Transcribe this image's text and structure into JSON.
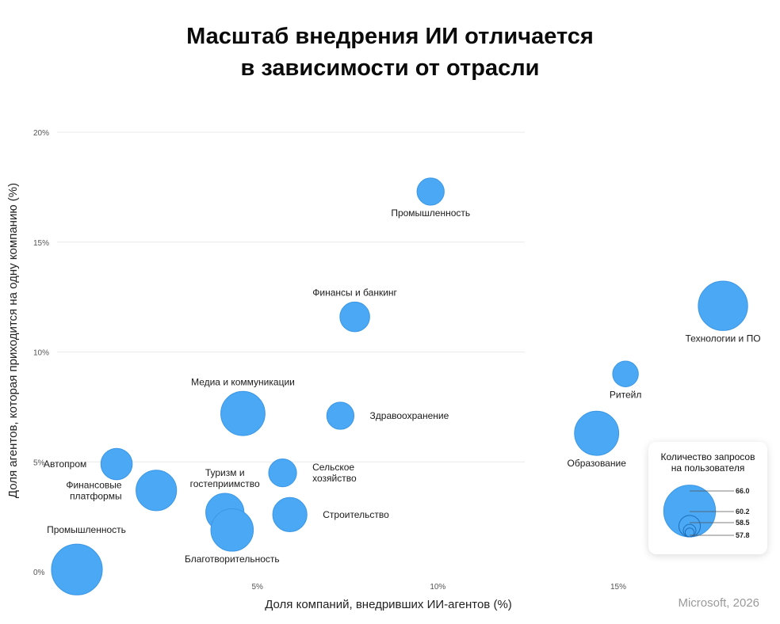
{
  "chart_data": {
    "type": "bubble",
    "title_lines": [
      "Масштаб внедрения ИИ отличается",
      "в зависимости от отрасли"
    ],
    "xlabel": "Доля компаний, внедривших ИИ-агентов (%)",
    "ylabel": "Доля агентов, которая приходится на одну компанию (%)",
    "xlim": [
      -1.2,
      19.5
    ],
    "ylim": [
      0,
      20
    ],
    "x_ticks": [
      {
        "v": 5,
        "label": "5%"
      },
      {
        "v": 10,
        "label": "10%"
      },
      {
        "v": 15,
        "label": "15%"
      }
    ],
    "y_ticks": [
      {
        "v": 0,
        "label": "0%"
      },
      {
        "v": 5,
        "label": "5%"
      },
      {
        "v": 10,
        "label": "10%"
      },
      {
        "v": 15,
        "label": "15%"
      },
      {
        "v": 20,
        "label": "20%"
      }
    ],
    "grid": true,
    "points": [
      {
        "label": "Промышленность",
        "x": 9.8,
        "y": 17.3,
        "size": 57.8,
        "label_pos": "below"
      },
      {
        "label": "Финансы и банкинг",
        "x": 7.7,
        "y": 11.6,
        "size": 58.2,
        "label_pos": "above"
      },
      {
        "label": "Технологии и ПО",
        "x": 17.9,
        "y": 12.1,
        "size": 64.0,
        "label_pos": "below"
      },
      {
        "label": "Ритейл",
        "x": 15.2,
        "y": 9.0,
        "size": 57.6,
        "label_pos": "below"
      },
      {
        "label": "Медиа и коммуникации",
        "x": 4.6,
        "y": 7.2,
        "size": 62.0,
        "label_pos": "above"
      },
      {
        "label": "Здравоохранение",
        "x": 7.3,
        "y": 7.1,
        "size": 57.8,
        "label_pos": "right"
      },
      {
        "label": "Образование",
        "x": 14.4,
        "y": 6.3,
        "size": 62.0,
        "label_pos": "below"
      },
      {
        "label": "Автопром",
        "x": 1.1,
        "y": 4.9,
        "size": 58.5,
        "label_pos": "left"
      },
      {
        "label": "Сельское хозяйство",
        "x": 5.7,
        "y": 4.5,
        "size": 57.9,
        "label_pos": "right",
        "label_lines": [
          "Сельское",
          "хозяйство"
        ]
      },
      {
        "label": "Финансовые платформы",
        "x": 2.2,
        "y": 3.7,
        "size": 60.8,
        "label_pos": "left",
        "label_lines": [
          "Финансовые",
          "платформы"
        ]
      },
      {
        "label": "Туризм и гостеприимство",
        "x": 4.1,
        "y": 2.7,
        "size": 60.1,
        "label_pos": "above",
        "label_lines": [
          "Туризм и",
          "гостеприимство"
        ]
      },
      {
        "label": "Строительство",
        "x": 5.9,
        "y": 2.6,
        "size": 59.1,
        "label_pos": "right"
      },
      {
        "label": "Благотворительность",
        "x": 4.3,
        "y": 1.9,
        "size": 61.4,
        "label_pos": "below"
      },
      {
        "label": "Промышленность",
        "x": 0.0,
        "y": 0.1,
        "size": 64.6,
        "label_pos": "above-left"
      }
    ],
    "size_legend": {
      "title_lines": [
        "Количество запросов",
        "на пользователя"
      ],
      "entries": [
        {
          "value": 66.0,
          "label": "66.0"
        },
        {
          "value": 60.2,
          "label": "60.2"
        },
        {
          "value": 58.5,
          "label": "58.5"
        },
        {
          "value": 57.8,
          "label": "57.8"
        }
      ]
    }
  },
  "source": "Microsoft, 2026",
  "colors": {
    "bubble": "#4aa8f4",
    "bubble_stroke": "#3b97e6",
    "grid": "#e9e9e9"
  }
}
